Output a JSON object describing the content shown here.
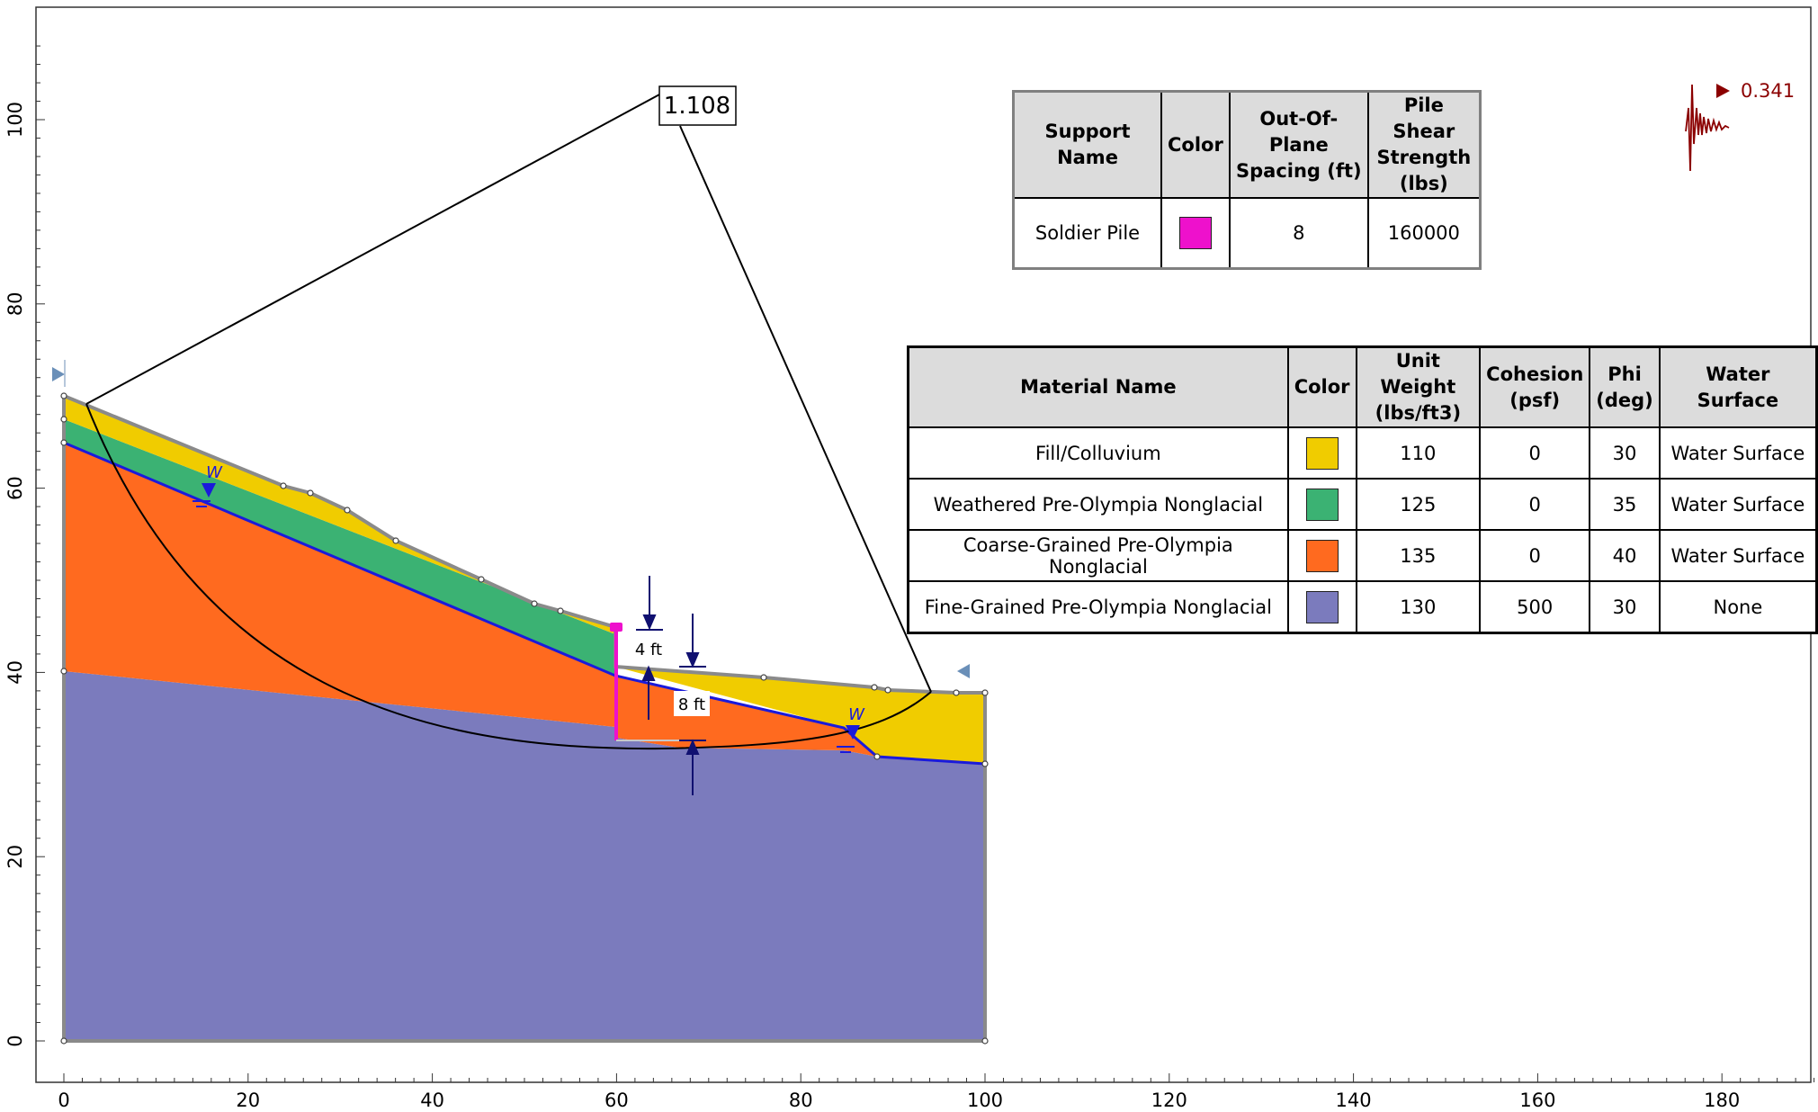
{
  "axes": {
    "x_ticks": [
      "0",
      "20",
      "40",
      "60",
      "80",
      "100",
      "120",
      "140",
      "160",
      "180"
    ],
    "y_ticks": [
      "0",
      "20",
      "40",
      "60",
      "80",
      "100"
    ],
    "xlim": [
      0,
      190
    ],
    "ylim": [
      0,
      108
    ]
  },
  "factor_of_safety": "1.108",
  "seismic": {
    "value": "0.341",
    "icon": "seismic-wave-icon",
    "color": "#8b0000"
  },
  "dimensions": {
    "upper": "4 ft",
    "lower": "8 ft"
  },
  "water_label": "W",
  "support_table": {
    "headers": [
      "Support Name",
      "Color",
      "Out-Of-Plane Spacing (ft)",
      "Pile Shear Strength (lbs)"
    ],
    "rows": [
      {
        "name": "Soldier Pile",
        "color": "#ee11cc",
        "spacing": "8",
        "strength": "160000"
      }
    ]
  },
  "material_table": {
    "headers": [
      "Material Name",
      "Color",
      "Unit Weight (lbs/ft3)",
      "Cohesion (psf)",
      "Phi (deg)",
      "Water Surface"
    ],
    "rows": [
      {
        "name": "Fill/Colluvium",
        "color": "#f0cc00",
        "unit_weight": "110",
        "cohesion": "0",
        "phi": "30",
        "water": "Water Surface"
      },
      {
        "name": "Weathered Pre-Olympia Nonglacial",
        "color": "#3bb273",
        "unit_weight": "125",
        "cohesion": "0",
        "phi": "35",
        "water": "Water Surface"
      },
      {
        "name": "Coarse-Grained Pre-Olympia Nonglacial",
        "color": "#ff6a1f",
        "unit_weight": "135",
        "cohesion": "0",
        "phi": "40",
        "water": "Water Surface"
      },
      {
        "name": "Fine-Grained Pre-Olympia Nonglacial",
        "color": "#7b7bbd",
        "unit_weight": "130",
        "cohesion": "500",
        "phi": "30",
        "water": "None"
      }
    ]
  }
}
